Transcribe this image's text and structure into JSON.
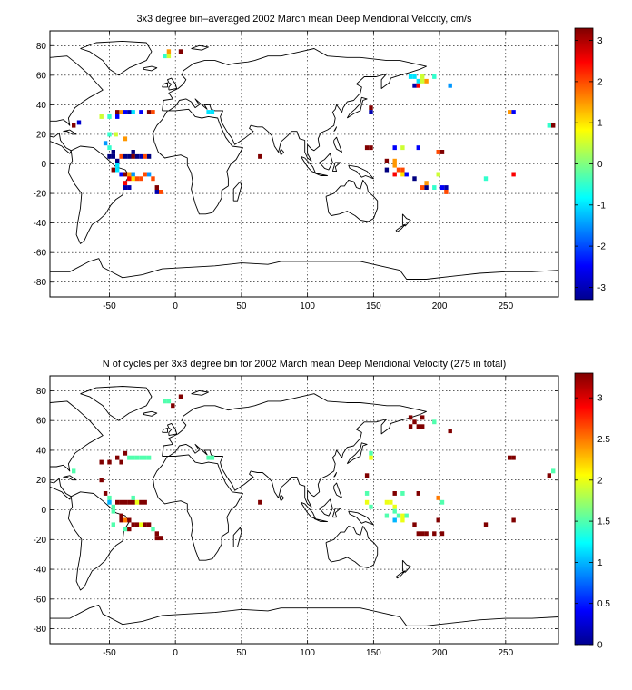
{
  "chart_data": [
    {
      "type": "heatmap",
      "title": "3x3 degree bin–averaged 2002 March mean Deep Meridional Velocity, cm/s",
      "xlim": [
        -95,
        290
      ],
      "ylim": [
        -90,
        90
      ],
      "xticks": [
        -50,
        0,
        50,
        100,
        150,
        200,
        250
      ],
      "yticks": [
        -80,
        -60,
        -40,
        -20,
        0,
        20,
        40,
        60,
        80
      ],
      "grid": true,
      "colorbar": {
        "min": -3.3,
        "max": 3.3,
        "ticks": [
          -3,
          -2,
          -1,
          0,
          1,
          2,
          3
        ],
        "colormap": "jet"
      },
      "cells": [
        [
          -77,
          26,
          3.3
        ],
        [
          -73,
          28,
          -2.8
        ],
        [
          -56,
          32,
          0.5
        ],
        [
          -50,
          32,
          -0.5
        ],
        [
          -44,
          32,
          -2.5
        ],
        [
          -44,
          35,
          3.3
        ],
        [
          -41,
          35,
          1.5
        ],
        [
          -38,
          35,
          -2.5
        ],
        [
          -35,
          35,
          -3
        ],
        [
          -32,
          35,
          -1
        ],
        [
          -26,
          35,
          -2.5
        ],
        [
          -20,
          35,
          3.3
        ],
        [
          -17,
          35,
          2.0
        ],
        [
          -53,
          14,
          -1.5
        ],
        [
          -50,
          11,
          -0.5
        ],
        [
          -50,
          5,
          -3.3
        ],
        [
          -47,
          5,
          -3.3
        ],
        [
          -47,
          8,
          -3.3
        ],
        [
          -44,
          2,
          -3.3
        ],
        [
          -44,
          -1,
          -1.0
        ],
        [
          -41,
          5,
          2.0
        ],
        [
          -38,
          5,
          -3.3
        ],
        [
          -35,
          5,
          -3.3
        ],
        [
          -32,
          8,
          -3.3
        ],
        [
          -32,
          5,
          3.3
        ],
        [
          -29,
          5,
          -3.3
        ],
        [
          -26,
          5,
          -3
        ],
        [
          -23,
          5,
          2.0
        ],
        [
          -20,
          5,
          -3.3
        ],
        [
          -41,
          -7,
          -2.5
        ],
        [
          -38,
          -7,
          3.3
        ],
        [
          -35,
          -7,
          1.5
        ],
        [
          -32,
          -7,
          -1.5
        ],
        [
          -32,
          -10,
          1.0
        ],
        [
          -29,
          -10,
          2.0
        ],
        [
          -26,
          -10,
          2.0
        ],
        [
          -23,
          -7,
          2.0
        ],
        [
          -20,
          -7,
          -1.5
        ],
        [
          -35,
          -10,
          2.5
        ],
        [
          -38,
          -13,
          2.5
        ],
        [
          -38,
          -16,
          -3
        ],
        [
          -35,
          -16,
          -3
        ],
        [
          -17,
          -10,
          2.0
        ],
        [
          -14,
          -16,
          3.3
        ],
        [
          -14,
          -19,
          -3
        ],
        [
          -11,
          -19,
          2.0
        ],
        [
          -50,
          20,
          -0.5
        ],
        [
          -38,
          17,
          1.5
        ],
        [
          -47,
          -4,
          3.3
        ],
        [
          -44,
          -4,
          -1.0
        ],
        [
          -8,
          73,
          -0.5
        ],
        [
          -5,
          73,
          0.5
        ],
        [
          -5,
          76,
          1.5
        ],
        [
          4,
          76,
          3.3
        ],
        [
          28,
          35,
          -1.0
        ],
        [
          25,
          35,
          -1.0
        ],
        [
          64,
          5,
          3.3
        ],
        [
          148,
          38,
          3.3
        ],
        [
          148,
          35,
          -3
        ],
        [
          145,
          11,
          3.3
        ],
        [
          148,
          11,
          3.3
        ],
        [
          166,
          11,
          -2.5
        ],
        [
          172,
          11,
          0.5
        ],
        [
          184,
          11,
          -2.5
        ],
        [
          199,
          8,
          2.0
        ],
        [
          202,
          8,
          3.3
        ],
        [
          160,
          2,
          3.3
        ],
        [
          166,
          2,
          1.5
        ],
        [
          166,
          -1,
          1.5
        ],
        [
          169,
          -4,
          2.0
        ],
        [
          172,
          -4,
          2.0
        ],
        [
          172,
          -7,
          1.0
        ],
        [
          175,
          -7,
          -2.5
        ],
        [
          160,
          -4,
          -3.3
        ],
        [
          166,
          -7,
          2.5
        ],
        [
          181,
          -10,
          -3.3
        ],
        [
          187,
          -16,
          2.0
        ],
        [
          190,
          -16,
          -3.3
        ],
        [
          190,
          -13,
          1.5
        ],
        [
          196,
          -16,
          -0.5
        ],
        [
          199,
          -7,
          0.5
        ],
        [
          202,
          -16,
          -2.5
        ],
        [
          205,
          -16,
          -3
        ],
        [
          205,
          -19,
          2.0
        ],
        [
          235,
          -10,
          -0.5
        ],
        [
          256,
          -7,
          2.5
        ],
        [
          178,
          59,
          -1.0
        ],
        [
          181,
          59,
          -1.0
        ],
        [
          184,
          56,
          -1.0
        ],
        [
          187,
          56,
          0.5
        ],
        [
          190,
          56,
          1.5
        ],
        [
          187,
          59,
          0.5
        ],
        [
          181,
          53,
          -3
        ],
        [
          184,
          53,
          2.5
        ],
        [
          196,
          59,
          -0.5
        ],
        [
          208,
          53,
          -1.5
        ],
        [
          253,
          35,
          1.5
        ],
        [
          256,
          35,
          -2.5
        ],
        [
          286,
          26,
          3.3
        ],
        [
          283,
          26,
          -0.5
        ],
        [
          -45,
          20,
          0.5
        ]
      ]
    },
    {
      "type": "heatmap",
      "title": "N of cycles per 3x3 degree bin for 2002 March mean Deep Meridional Velocity (275 in total)",
      "xlim": [
        -95,
        290
      ],
      "ylim": [
        -90,
        90
      ],
      "xticks": [
        -50,
        0,
        50,
        100,
        150,
        200,
        250
      ],
      "yticks": [
        -80,
        -60,
        -40,
        -20,
        0,
        20,
        40,
        60,
        80
      ],
      "grid": true,
      "colorbar": {
        "min": 0,
        "max": 3.3,
        "ticks": [
          0,
          0.5,
          1,
          1.5,
          2,
          2.5,
          3
        ],
        "colormap": "jet"
      },
      "cells": [
        [
          -77,
          26,
          1.5
        ],
        [
          -56,
          32,
          3.3
        ],
        [
          -50,
          32,
          3.3
        ],
        [
          -44,
          35,
          3.3
        ],
        [
          -41,
          32,
          3.3
        ],
        [
          -38,
          38,
          3.3
        ],
        [
          -35,
          35,
          1.5
        ],
        [
          -32,
          35,
          1.5
        ],
        [
          -29,
          35,
          1.5
        ],
        [
          -26,
          35,
          1.5
        ],
        [
          -23,
          35,
          1.5
        ],
        [
          -20,
          35,
          1.5
        ],
        [
          -56,
          20,
          3.3
        ],
        [
          -53,
          11,
          3.3
        ],
        [
          -50,
          8,
          1.5
        ],
        [
          -50,
          5,
          1.0
        ],
        [
          -47,
          2,
          1.5
        ],
        [
          -47,
          -1,
          1.5
        ],
        [
          -44,
          5,
          3.3
        ],
        [
          -41,
          5,
          3.3
        ],
        [
          -38,
          5,
          3.3
        ],
        [
          -35,
          5,
          3.3
        ],
        [
          -32,
          5,
          3.3
        ],
        [
          -32,
          8,
          1.5
        ],
        [
          -29,
          5,
          2.0
        ],
        [
          -26,
          5,
          3.3
        ],
        [
          -23,
          5,
          3.3
        ],
        [
          -41,
          -4,
          3.3
        ],
        [
          -41,
          -7,
          3.3
        ],
        [
          -38,
          -7,
          2.5
        ],
        [
          -35,
          -7,
          3.3
        ],
        [
          -32,
          -10,
          3.3
        ],
        [
          -29,
          -10,
          3.3
        ],
        [
          -26,
          -10,
          2.0
        ],
        [
          -23,
          -10,
          3.3
        ],
        [
          -20,
          -10,
          3.3
        ],
        [
          -38,
          -13,
          1.5
        ],
        [
          -35,
          -13,
          3.3
        ],
        [
          -17,
          -13,
          1.5
        ],
        [
          -14,
          -16,
          3.3
        ],
        [
          -14,
          -19,
          3.3
        ],
        [
          -11,
          -19,
          3.3
        ],
        [
          -47,
          -10,
          1.5
        ],
        [
          -8,
          73,
          1.5
        ],
        [
          -5,
          73,
          1.5
        ],
        [
          4,
          76,
          3.3
        ],
        [
          -2,
          70,
          3.3
        ],
        [
          28,
          35,
          1.5
        ],
        [
          25,
          35,
          1.5
        ],
        [
          64,
          5,
          3.3
        ],
        [
          148,
          38,
          1.5
        ],
        [
          148,
          35,
          2.0
        ],
        [
          145,
          23,
          3.3
        ],
        [
          145,
          11,
          1.5
        ],
        [
          145,
          5,
          2.0
        ],
        [
          148,
          2,
          1.5
        ],
        [
          166,
          11,
          3.3
        ],
        [
          172,
          11,
          1.5
        ],
        [
          184,
          11,
          3.3
        ],
        [
          199,
          8,
          2.5
        ],
        [
          202,
          5,
          1.5
        ],
        [
          160,
          5,
          2.0
        ],
        [
          163,
          5,
          2.0
        ],
        [
          166,
          2,
          2.0
        ],
        [
          166,
          -1,
          1.5
        ],
        [
          169,
          -4,
          1.5
        ],
        [
          172,
          -4,
          2.0
        ],
        [
          172,
          -7,
          2.0
        ],
        [
          175,
          -4,
          1.5
        ],
        [
          160,
          -4,
          1.5
        ],
        [
          166,
          -7,
          1.0
        ],
        [
          181,
          -10,
          3.3
        ],
        [
          184,
          -16,
          3.3
        ],
        [
          187,
          -16,
          3.3
        ],
        [
          190,
          -16,
          3.3
        ],
        [
          196,
          -16,
          3.3
        ],
        [
          199,
          -7,
          3.3
        ],
        [
          202,
          -16,
          3.3
        ],
        [
          235,
          -10,
          3.3
        ],
        [
          256,
          -7,
          3.3
        ],
        [
          178,
          62,
          3.3
        ],
        [
          181,
          59,
          3.3
        ],
        [
          184,
          56,
          3.3
        ],
        [
          187,
          56,
          3.3
        ],
        [
          187,
          62,
          3.3
        ],
        [
          196,
          59,
          1.5
        ],
        [
          208,
          53,
          3.3
        ],
        [
          253,
          35,
          3.3
        ],
        [
          256,
          35,
          3.3
        ],
        [
          286,
          26,
          1.5
        ],
        [
          283,
          23,
          3.3
        ],
        [
          178,
          56,
          3.3
        ]
      ]
    }
  ]
}
